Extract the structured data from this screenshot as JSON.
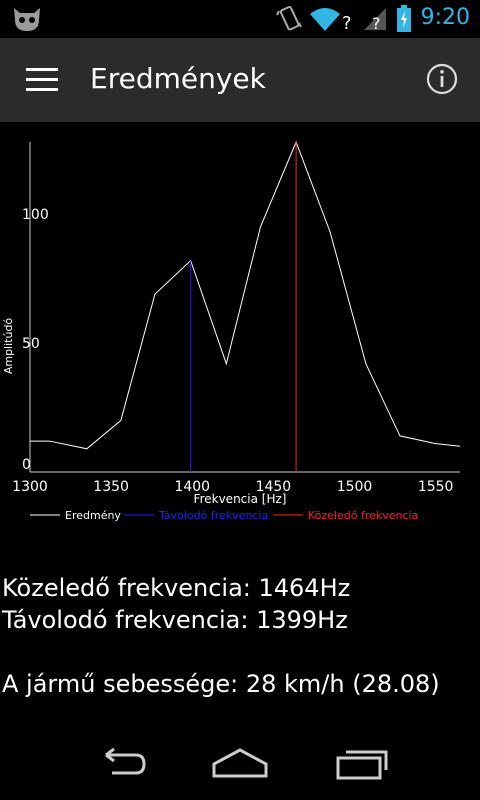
{
  "status": {
    "time": "9:20"
  },
  "actionbar": {
    "title": "Eredmények"
  },
  "chart_data": {
    "type": "line",
    "xlabel": "Frekvencia [Hz]",
    "ylabel": "Amplitúdó",
    "xlim": [
      1300,
      1565
    ],
    "ylim": [
      0,
      128
    ],
    "xticks": [
      1300,
      1350,
      1400,
      1450,
      1500,
      1550
    ],
    "yticks": [
      0,
      50,
      100
    ],
    "grid": false,
    "legend_position": "bottom",
    "series": [
      {
        "name": "Eredmény",
        "color": "#ffffff",
        "x": [
          1300,
          1312,
          1335,
          1356,
          1377,
          1399,
          1421,
          1442,
          1464,
          1485,
          1507,
          1528,
          1550,
          1565
        ],
        "y": [
          12,
          12,
          9,
          20,
          69,
          82,
          42,
          95,
          128,
          93,
          42,
          14,
          11,
          10
        ]
      },
      {
        "name": "Távolodó frekvencia",
        "color": "#2222ff",
        "x": [
          1399,
          1399
        ],
        "y": [
          0,
          82
        ]
      },
      {
        "name": "Közeledő frekvencia",
        "color": "#ff2222",
        "x": [
          1464,
          1464
        ],
        "y": [
          0,
          128
        ]
      }
    ]
  },
  "results": {
    "approaching": "Közeledő frekvencia: 1464Hz",
    "receding": "Távolodó frekvencia: 1399Hz",
    "speed": "A jármű sebessége: 28 km/h (28.08)"
  }
}
